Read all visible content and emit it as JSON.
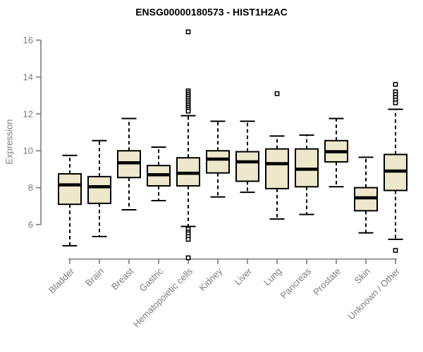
{
  "chart_data": {
    "type": "boxplot",
    "title": "ENSG00000180573 - HIST1H2AC",
    "ylabel": "Expression",
    "xlabel": "",
    "y_ticks": [
      6,
      8,
      10,
      12,
      14,
      16
    ],
    "ylim": [
      4.0,
      16.6
    ],
    "grid": false,
    "legend": null,
    "colors": {
      "box_fill": "#EDE7CB",
      "box_border": "#000000",
      "median": "#000000",
      "whisker": "#000000",
      "axis": "#7b7b7b",
      "tick_text": "#7b7b7b",
      "title_text": "#000000",
      "outlier_fill": "#ffffff"
    },
    "categories": [
      "Bladder",
      "Brain",
      "Breast",
      "Gastric",
      "Hematopoietic cells",
      "Kidney",
      "Liver",
      "Lung",
      "Pancreas",
      "Prostate",
      "Skin",
      "Unknown / Other"
    ],
    "series": [
      {
        "label": "Bladder",
        "low": 4.85,
        "q1": 7.1,
        "median": 8.15,
        "q3": 8.75,
        "high": 9.75,
        "outliers": []
      },
      {
        "label": "Brain",
        "low": 5.35,
        "q1": 7.15,
        "median": 8.05,
        "q3": 8.6,
        "high": 10.55,
        "outliers": []
      },
      {
        "label": "Breast",
        "low": 6.8,
        "q1": 8.55,
        "median": 9.35,
        "q3": 10.0,
        "high": 11.75,
        "outliers": []
      },
      {
        "label": "Gastric",
        "low": 7.3,
        "q1": 8.1,
        "median": 8.7,
        "q3": 9.2,
        "high": 10.2,
        "outliers": []
      },
      {
        "label": "Hematopoietic cells",
        "low": 5.9,
        "q1": 8.1,
        "median": 8.78,
        "q3": 9.62,
        "high": 11.9,
        "outliers": [
          16.45,
          13.25,
          13.15,
          13.05,
          12.95,
          12.85,
          12.75,
          12.65,
          12.55,
          12.45,
          12.35,
          12.25,
          12.15,
          5.75,
          5.6,
          5.5,
          5.35,
          5.2,
          4.2
        ]
      },
      {
        "label": "Kidney",
        "low": 7.5,
        "q1": 8.8,
        "median": 9.55,
        "q3": 10.0,
        "high": 11.6,
        "outliers": []
      },
      {
        "label": "Liver",
        "low": 7.75,
        "q1": 8.35,
        "median": 9.4,
        "q3": 9.95,
        "high": 11.6,
        "outliers": []
      },
      {
        "label": "Lung",
        "low": 6.3,
        "q1": 7.95,
        "median": 9.3,
        "q3": 10.1,
        "high": 10.8,
        "outliers": [
          13.1
        ]
      },
      {
        "label": "Pancreas",
        "low": 6.55,
        "q1": 8.05,
        "median": 9.0,
        "q3": 10.1,
        "high": 10.85,
        "outliers": []
      },
      {
        "label": "Prostate",
        "low": 8.05,
        "q1": 9.4,
        "median": 9.95,
        "q3": 10.55,
        "high": 11.75,
        "outliers": []
      },
      {
        "label": "Skin",
        "low": 5.55,
        "q1": 6.75,
        "median": 7.45,
        "q3": 8.0,
        "high": 9.65,
        "outliers": []
      },
      {
        "label": "Unknown / Other",
        "low": 5.2,
        "q1": 7.85,
        "median": 8.9,
        "q3": 9.8,
        "high": 12.25,
        "outliers": [
          13.6,
          13.2,
          13.05,
          12.9,
          12.75,
          12.6,
          4.6
        ]
      }
    ]
  }
}
